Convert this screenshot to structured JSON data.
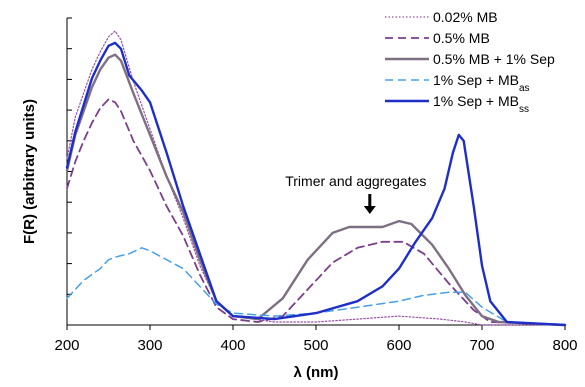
{
  "chart_data": {
    "type": "line",
    "title": "",
    "xlabel": "λ (nm)",
    "ylabel": "F(R) (arbitrary units)",
    "xlim": [
      200,
      800
    ],
    "ylim": [
      0,
      1
    ],
    "x_ticks": [
      "200",
      "300",
      "400",
      "500",
      "600",
      "700",
      "800"
    ],
    "y_ticks_labeled": false,
    "grid": false,
    "legend_position": "top-right",
    "annotation": {
      "text": "Trimer and aggregates",
      "x": 560
    },
    "series": [
      {
        "name": "0.02% MB",
        "name_html": "0.02% MB",
        "color": "#9b4fa8",
        "style": "dotted",
        "width": 1.2,
        "points": [
          [
            200,
            0.56
          ],
          [
            210,
            0.7
          ],
          [
            220,
            0.78
          ],
          [
            230,
            0.86
          ],
          [
            240,
            0.92
          ],
          [
            250,
            0.97
          ],
          [
            258,
            0.99
          ],
          [
            265,
            0.96
          ],
          [
            280,
            0.82
          ],
          [
            300,
            0.66
          ],
          [
            320,
            0.5
          ],
          [
            340,
            0.36
          ],
          [
            360,
            0.2
          ],
          [
            380,
            0.08
          ],
          [
            400,
            0.03
          ],
          [
            450,
            0.01
          ],
          [
            500,
            0.01
          ],
          [
            550,
            0.02
          ],
          [
            600,
            0.03
          ],
          [
            650,
            0.02
          ],
          [
            680,
            0.01
          ],
          [
            700,
            0.0
          ],
          [
            800,
            0.0
          ]
        ]
      },
      {
        "name": "0.5% MB",
        "name_html": "0.5% MB",
        "color": "#7b3f8c",
        "style": "dashed",
        "width": 1.8,
        "points": [
          [
            200,
            0.46
          ],
          [
            210,
            0.55
          ],
          [
            220,
            0.62
          ],
          [
            230,
            0.68
          ],
          [
            240,
            0.73
          ],
          [
            250,
            0.76
          ],
          [
            258,
            0.75
          ],
          [
            265,
            0.72
          ],
          [
            280,
            0.62
          ],
          [
            300,
            0.52
          ],
          [
            320,
            0.4
          ],
          [
            340,
            0.3
          ],
          [
            360,
            0.17
          ],
          [
            380,
            0.06
          ],
          [
            400,
            0.02
          ],
          [
            430,
            0.01
          ],
          [
            460,
            0.03
          ],
          [
            490,
            0.12
          ],
          [
            520,
            0.21
          ],
          [
            550,
            0.26
          ],
          [
            580,
            0.28
          ],
          [
            605,
            0.28
          ],
          [
            630,
            0.24
          ],
          [
            660,
            0.14
          ],
          [
            690,
            0.05
          ],
          [
            710,
            0.01
          ],
          [
            800,
            0.0
          ]
        ]
      },
      {
        "name": "0.5% MB + 1% Sep",
        "name_html": "0.5% MB + 1% Sep",
        "color": "#7e7082",
        "style": "solid",
        "width": 2.4,
        "points": [
          [
            200,
            0.52
          ],
          [
            210,
            0.64
          ],
          [
            220,
            0.72
          ],
          [
            230,
            0.8
          ],
          [
            240,
            0.86
          ],
          [
            250,
            0.9
          ],
          [
            258,
            0.91
          ],
          [
            265,
            0.89
          ],
          [
            280,
            0.78
          ],
          [
            300,
            0.64
          ],
          [
            320,
            0.5
          ],
          [
            340,
            0.38
          ],
          [
            360,
            0.22
          ],
          [
            380,
            0.08
          ],
          [
            400,
            0.03
          ],
          [
            430,
            0.02
          ],
          [
            460,
            0.09
          ],
          [
            490,
            0.22
          ],
          [
            520,
            0.31
          ],
          [
            540,
            0.33
          ],
          [
            560,
            0.33
          ],
          [
            580,
            0.33
          ],
          [
            600,
            0.35
          ],
          [
            615,
            0.34
          ],
          [
            640,
            0.27
          ],
          [
            660,
            0.19
          ],
          [
            680,
            0.1
          ],
          [
            700,
            0.03
          ],
          [
            720,
            0.01
          ],
          [
            800,
            0.0
          ]
        ]
      },
      {
        "name": "1% Sep + MBas",
        "name_html": "1% Sep + MB<tspan baseline-shift='sub' font-size='10'>as</tspan>",
        "color": "#46a0e6",
        "style": "dashed",
        "width": 1.5,
        "points": [
          [
            200,
            0.09
          ],
          [
            210,
            0.12
          ],
          [
            220,
            0.15
          ],
          [
            240,
            0.19
          ],
          [
            250,
            0.22
          ],
          [
            260,
            0.23
          ],
          [
            275,
            0.24
          ],
          [
            290,
            0.26
          ],
          [
            300,
            0.25
          ],
          [
            320,
            0.22
          ],
          [
            340,
            0.19
          ],
          [
            360,
            0.13
          ],
          [
            380,
            0.07
          ],
          [
            400,
            0.04
          ],
          [
            450,
            0.03
          ],
          [
            500,
            0.04
          ],
          [
            550,
            0.06
          ],
          [
            600,
            0.08
          ],
          [
            630,
            0.1
          ],
          [
            660,
            0.11
          ],
          [
            680,
            0.11
          ],
          [
            700,
            0.06
          ],
          [
            730,
            0.01
          ],
          [
            800,
            0.0
          ]
        ]
      },
      {
        "name": "1% Sep + MBss",
        "name_html": "1% Sep + MB<tspan baseline-shift='sub' font-size='10'>ss</tspan>",
        "color": "#1e2fc7",
        "style": "solid",
        "width": 2.4,
        "points": [
          [
            200,
            0.53
          ],
          [
            210,
            0.65
          ],
          [
            220,
            0.74
          ],
          [
            230,
            0.83
          ],
          [
            240,
            0.89
          ],
          [
            250,
            0.94
          ],
          [
            258,
            0.95
          ],
          [
            265,
            0.93
          ],
          [
            275,
            0.84
          ],
          [
            290,
            0.79
          ],
          [
            300,
            0.75
          ],
          [
            320,
            0.58
          ],
          [
            340,
            0.4
          ],
          [
            360,
            0.24
          ],
          [
            380,
            0.08
          ],
          [
            400,
            0.03
          ],
          [
            450,
            0.02
          ],
          [
            500,
            0.04
          ],
          [
            550,
            0.08
          ],
          [
            580,
            0.13
          ],
          [
            600,
            0.19
          ],
          [
            620,
            0.28
          ],
          [
            640,
            0.36
          ],
          [
            655,
            0.46
          ],
          [
            665,
            0.58
          ],
          [
            672,
            0.64
          ],
          [
            678,
            0.62
          ],
          [
            690,
            0.4
          ],
          [
            700,
            0.2
          ],
          [
            710,
            0.08
          ],
          [
            730,
            0.01
          ],
          [
            800,
            0.0
          ]
        ]
      }
    ]
  }
}
